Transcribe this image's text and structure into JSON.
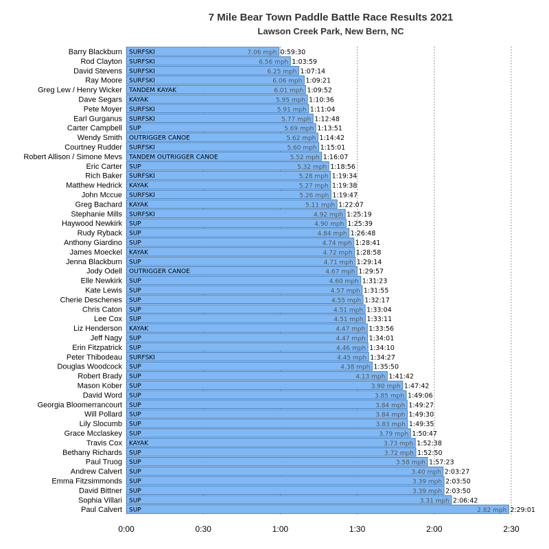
{
  "chart_data": {
    "type": "bar",
    "orientation": "horizontal",
    "title": "7 Mile Bear Town Paddle Battle Race Results 2021",
    "subtitle": "Lawson Creek Park, New Bern, NC",
    "x_ticks": [
      "0:00",
      "0:30",
      "1:00",
      "1:30",
      "2:00",
      "2:30"
    ],
    "x_tick_minutes": [
      0,
      30,
      60,
      90,
      120,
      150
    ],
    "xlim_minutes": [
      0,
      150
    ],
    "grid": "vertical dotted",
    "bar_color": "#7fb8f5",
    "bar_border_color": "#4a7fb5",
    "rows": [
      {
        "name": "Barry Blackburn",
        "category": "SURFSKI",
        "speed": "7.06 mph",
        "time": "0:59:30",
        "minutes": 59.5
      },
      {
        "name": "Rod Clayton",
        "category": "SURFSKI",
        "speed": "6.56 mph",
        "time": "1:03:59",
        "minutes": 63.98
      },
      {
        "name": "David Stevens",
        "category": "SURFSKI",
        "speed": "6.25 mph",
        "time": "1:07:14",
        "minutes": 67.23
      },
      {
        "name": "Ray Moore",
        "category": "SURFSKI",
        "speed": "6.06 mph",
        "time": "1:09:21",
        "minutes": 69.35
      },
      {
        "name": "Greg Lew / Henry Wicker",
        "category": "TANDEM KAYAK",
        "speed": "6.01 mph",
        "time": "1:09:52",
        "minutes": 69.87
      },
      {
        "name": "Dave Segars",
        "category": "KAYAK",
        "speed": "5.95 mph",
        "time": "1:10:36",
        "minutes": 70.6
      },
      {
        "name": "Pete Moyer",
        "category": "SURFSKI",
        "speed": "5.91 mph",
        "time": "1:11:04",
        "minutes": 71.07
      },
      {
        "name": "Earl Gurganus",
        "category": "SURFSKI",
        "speed": "5.77 mph",
        "time": "1:12:48",
        "minutes": 72.8
      },
      {
        "name": "Carter Campbell",
        "category": "SUP",
        "speed": "5.69 mph",
        "time": "1:13:51",
        "minutes": 73.85
      },
      {
        "name": "Wendy Smith",
        "category": "OUTRIGGER CANOE",
        "speed": "5.62 mph",
        "time": "1:14:42",
        "minutes": 74.7
      },
      {
        "name": "Courtney Rudder",
        "category": "SURFSKI",
        "speed": "5.60 mph",
        "time": "1:15:01",
        "minutes": 75.02
      },
      {
        "name": "Robert Allison / Simone Mevs",
        "category": "TANDEM OUTRIGGER CANOE",
        "speed": "5.52 mph",
        "time": "1:16:07",
        "minutes": 76.12
      },
      {
        "name": "Eric Carter",
        "category": "SUP",
        "speed": "5.32 mph",
        "time": "1:18:56",
        "minutes": 78.93
      },
      {
        "name": "Rich Baker",
        "category": "SURFSKI",
        "speed": "5.28 mph",
        "time": "1:19:34",
        "minutes": 79.57
      },
      {
        "name": "Matthew Hedrick",
        "category": "KAYAK",
        "speed": "5.27 mph",
        "time": "1:19:38",
        "minutes": 79.63
      },
      {
        "name": "John Mccue",
        "category": "SURFSKI",
        "speed": "5.26 mph",
        "time": "1:19:47",
        "minutes": 79.78
      },
      {
        "name": "Greg Bachard",
        "category": "KAYAK",
        "speed": "5.11 mph",
        "time": "1:22:07",
        "minutes": 82.12
      },
      {
        "name": "Stephanie Mills",
        "category": "SURFSKI",
        "speed": "4.92 mph",
        "time": "1:25:19",
        "minutes": 85.32
      },
      {
        "name": "Haywood Newkirk",
        "category": "SUP",
        "speed": "4.90 mph",
        "time": "1:25:39",
        "minutes": 85.65
      },
      {
        "name": "Rudy Ryback",
        "category": "SUP",
        "speed": "4.84 mph",
        "time": "1:26:48",
        "minutes": 86.8
      },
      {
        "name": "Anthony Giardino",
        "category": "SUP",
        "speed": "4.74 mph",
        "time": "1:28:41",
        "minutes": 88.68
      },
      {
        "name": "James Moeckel",
        "category": "KAYAK",
        "speed": "4.72 mph",
        "time": "1:28:58",
        "minutes": 88.97
      },
      {
        "name": "Jenna Blackburn",
        "category": "SUP",
        "speed": "4.71 mph",
        "time": "1:29:14",
        "minutes": 89.23
      },
      {
        "name": "Jody Odell",
        "category": "OUTRIGGER CANOE",
        "speed": "4.67 mph",
        "time": "1:29:57",
        "minutes": 89.95
      },
      {
        "name": "Elle Newkirk",
        "category": "SUP",
        "speed": "4.60 mph",
        "time": "1:31:23",
        "minutes": 91.38
      },
      {
        "name": "Kate Lewis",
        "category": "SUP",
        "speed": "4.57 mph",
        "time": "1:31:55",
        "minutes": 91.92
      },
      {
        "name": "Cherie Deschenes",
        "category": "SUP",
        "speed": "4.55 mph",
        "time": "1:32:17",
        "minutes": 92.28
      },
      {
        "name": "Chris Caton",
        "category": "SUP",
        "speed": "4.51 mph",
        "time": "1:33:04",
        "minutes": 93.07
      },
      {
        "name": "Lee Cox",
        "category": "SUP",
        "speed": "4.51 mph",
        "time": "1:33:11",
        "minutes": 93.18
      },
      {
        "name": "Liz Henderson",
        "category": "KAYAK",
        "speed": "4.47 mph",
        "time": "1:33:56",
        "minutes": 93.93
      },
      {
        "name": "Jeff Nagy",
        "category": "SUP",
        "speed": "4.47 mph",
        "time": "1:34:01",
        "minutes": 94.02
      },
      {
        "name": "Erin Fitzpatrick",
        "category": "SUP",
        "speed": "4.46 mph",
        "time": "1:34:10",
        "minutes": 94.17
      },
      {
        "name": "Peter Thibodeau",
        "category": "SURFSKI",
        "speed": "4.45 mph",
        "time": "1:34:27",
        "minutes": 94.45
      },
      {
        "name": "Douglas Woodcock",
        "category": "SUP",
        "speed": "4.38 mph",
        "time": "1:35:50",
        "minutes": 95.83
      },
      {
        "name": "Robert Brady",
        "category": "SUP",
        "speed": "4.13 mph",
        "time": "1:41:42",
        "minutes": 101.7
      },
      {
        "name": "Mason Kober",
        "category": "SUP",
        "speed": "3.90 mph",
        "time": "1:47:42",
        "minutes": 107.7
      },
      {
        "name": "David Word",
        "category": "SUP",
        "speed": "3.85 mph",
        "time": "1:49:06",
        "minutes": 109.1
      },
      {
        "name": "Georgia Bloomerrancourt",
        "category": "SUP",
        "speed": "3.84 mph",
        "time": "1:49:27",
        "minutes": 109.45
      },
      {
        "name": "Will Pollard",
        "category": "SUP",
        "speed": "3.84 mph",
        "time": "1:49:30",
        "minutes": 109.5
      },
      {
        "name": "Lily Slocumb",
        "category": "SUP",
        "speed": "3.83 mph",
        "time": "1:49:35",
        "minutes": 109.58
      },
      {
        "name": "Grace Mcclaskey",
        "category": "SUP",
        "speed": "3.79 mph",
        "time": "1:50:47",
        "minutes": 110.78
      },
      {
        "name": "Travis Cox",
        "category": "KAYAK",
        "speed": "3.73 mph",
        "time": "1:52:38",
        "minutes": 112.63
      },
      {
        "name": "Bethany Richards",
        "category": "SUP",
        "speed": "3.72 mph",
        "time": "1:52:50",
        "minutes": 112.83
      },
      {
        "name": "Paul Truog",
        "category": "SUP",
        "speed": "3.58 mph",
        "time": "1:57:23",
        "minutes": 117.38
      },
      {
        "name": "Andrew Calvert",
        "category": "SUP",
        "speed": "3.40 mph",
        "time": "2:03:27",
        "minutes": 123.45
      },
      {
        "name": "Emma Fitzsimmonds",
        "category": "SUP",
        "speed": "3.39 mph",
        "time": "2:03:50",
        "minutes": 123.83
      },
      {
        "name": "David Bittner",
        "category": "SUP",
        "speed": "3.39 mph",
        "time": "2:03:50",
        "minutes": 123.83
      },
      {
        "name": "Sophia Villari",
        "category": "SUP",
        "speed": "3.31 mph",
        "time": "2:06:42",
        "minutes": 126.7
      },
      {
        "name": "Paul Calvert",
        "category": "SUP",
        "speed": "2.82 mph",
        "time": "2:29:01",
        "minutes": 149.02
      }
    ]
  }
}
